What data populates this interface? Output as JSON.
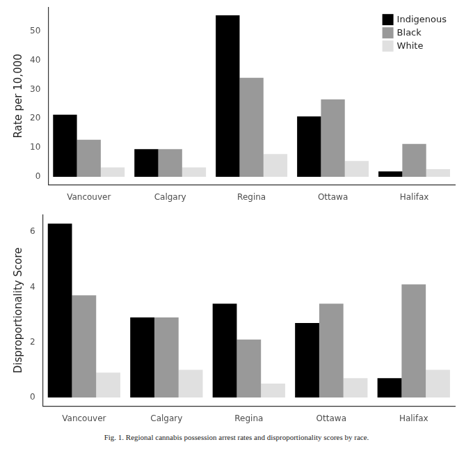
{
  "chart_data": [
    {
      "type": "bar",
      "y_label": "Rate per 10,000",
      "categories": [
        "Vancouver",
        "Calgary",
        "Regina",
        "Ottawa",
        "Halifax"
      ],
      "series": [
        {
          "name": "Indigenous",
          "color": "#000000",
          "values": [
            21.3,
            9.5,
            55.5,
            20.7,
            1.8
          ]
        },
        {
          "name": "Black",
          "color": "#999999",
          "values": [
            12.7,
            9.5,
            34.0,
            26.6,
            11.3
          ]
        },
        {
          "name": "White",
          "color": "#e0e0e0",
          "values": [
            3.2,
            3.2,
            7.8,
            5.4,
            2.6
          ]
        }
      ],
      "ylim": [
        -2.8,
        58.3
      ],
      "yticks": [
        0,
        10,
        20,
        30,
        40,
        50
      ],
      "grid": false,
      "legend": "top-right"
    },
    {
      "type": "bar",
      "y_label": "Disproportionality Score",
      "categories": [
        "Vancouver",
        "Calgary",
        "Regina",
        "Ottawa",
        "Halifax"
      ],
      "series": [
        {
          "name": "Indigenous",
          "color": "#000000",
          "values": [
            6.3,
            2.9,
            3.4,
            2.7,
            0.7
          ]
        },
        {
          "name": "Black",
          "color": "#999999",
          "values": [
            3.7,
            2.9,
            2.1,
            3.4,
            4.1
          ]
        },
        {
          "name": "White",
          "color": "#e0e0e0",
          "values": [
            0.9,
            1.0,
            0.5,
            0.7,
            1.0
          ]
        }
      ],
      "ylim": [
        -0.32,
        6.63
      ],
      "yticks": [
        0,
        2,
        4,
        6
      ],
      "grid": false
    }
  ],
  "caption": "Fig. 1. Regional cannabis possession arrest rates and disproportionality scores by race."
}
